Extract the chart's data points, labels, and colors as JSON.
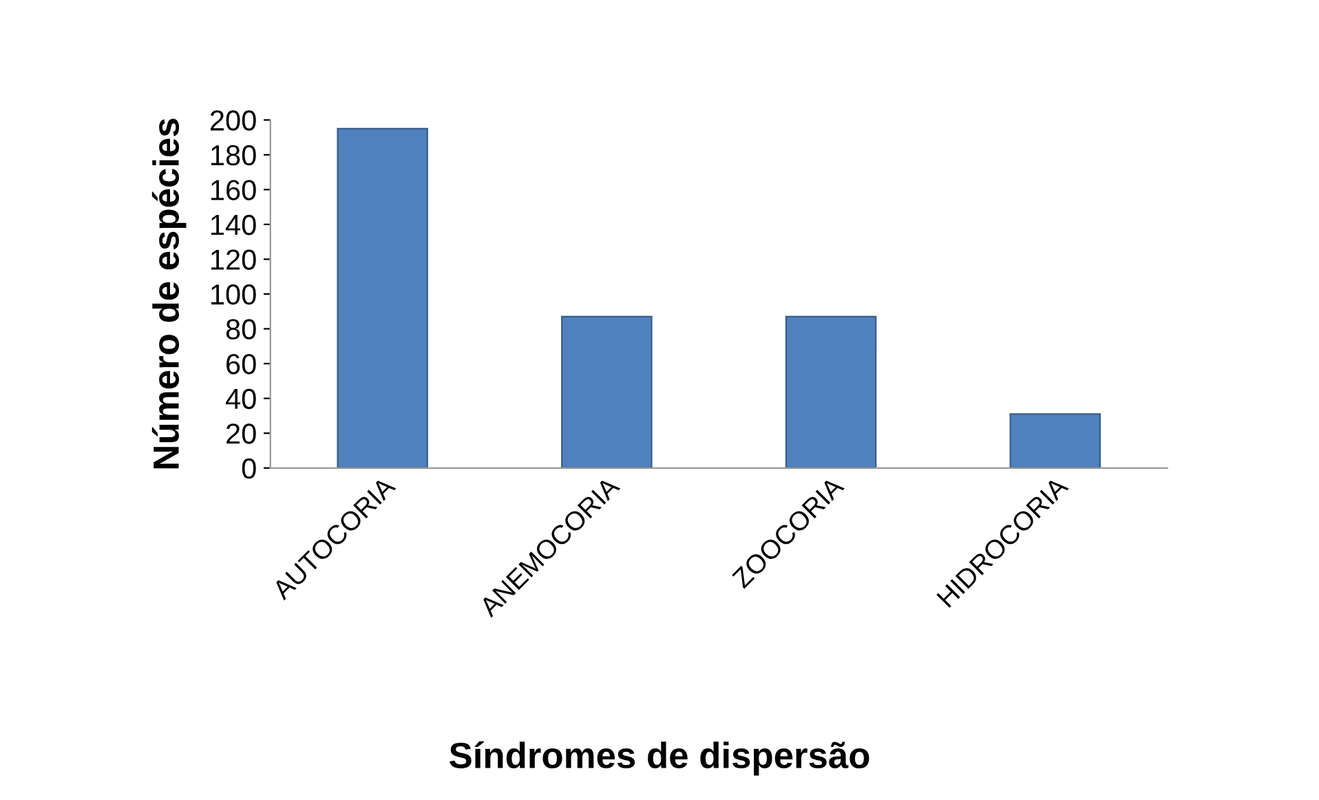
{
  "chart_data": {
    "type": "bar",
    "xlabel": "Síndromes de dispersão",
    "ylabel": "Número de espécies",
    "categories": [
      "AUTOCORIA",
      "ANEMOCORIA",
      "ZOOCORIA",
      "HIDROCORIA"
    ],
    "values": [
      195,
      87,
      87,
      31
    ],
    "color": "#4f81bd",
    "ylim": [
      0,
      200
    ],
    "yticks": [
      0,
      20,
      40,
      60,
      80,
      100,
      120,
      140,
      160,
      180,
      200
    ],
    "grid": false
  }
}
